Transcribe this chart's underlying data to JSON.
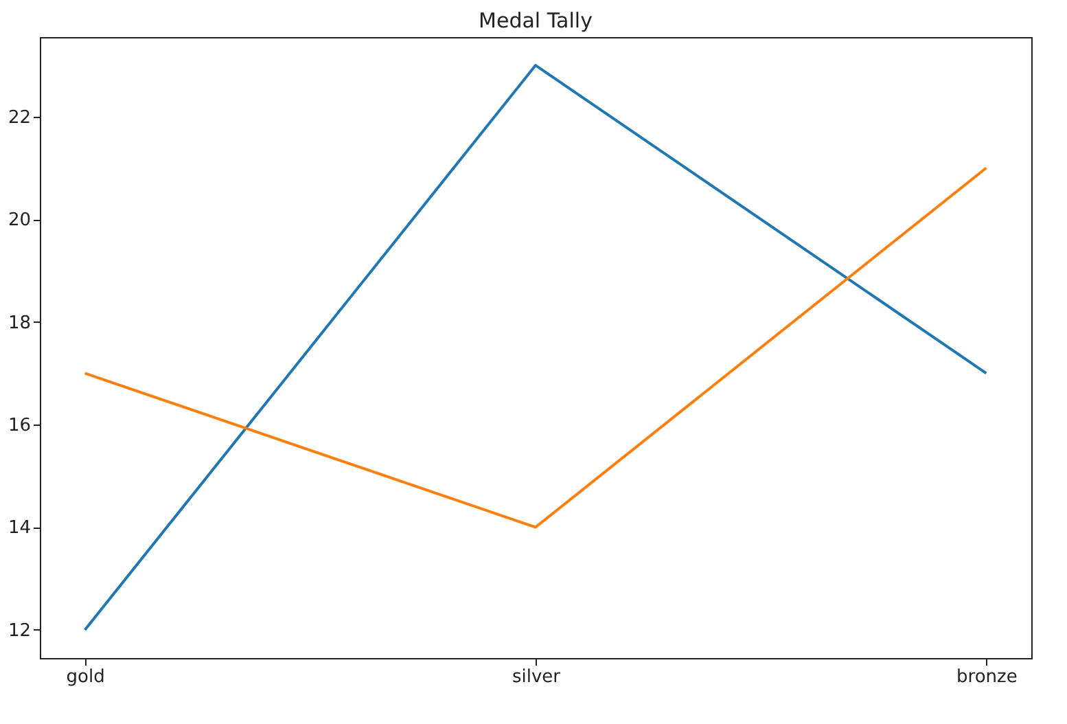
{
  "chart_data": {
    "type": "line",
    "title": "Medal Tally",
    "categories": [
      "gold",
      "silver",
      "bronze"
    ],
    "series": [
      {
        "color": "#1f77b4",
        "values": [
          12,
          23,
          17
        ]
      },
      {
        "color": "#ff7f0e",
        "values": [
          17,
          14,
          21
        ]
      }
    ],
    "ylim": [
      11.45,
      23.55
    ],
    "yticks": [
      12,
      14,
      16,
      18,
      20,
      22
    ],
    "grid": false,
    "marker": "none",
    "line_style": "solid"
  }
}
